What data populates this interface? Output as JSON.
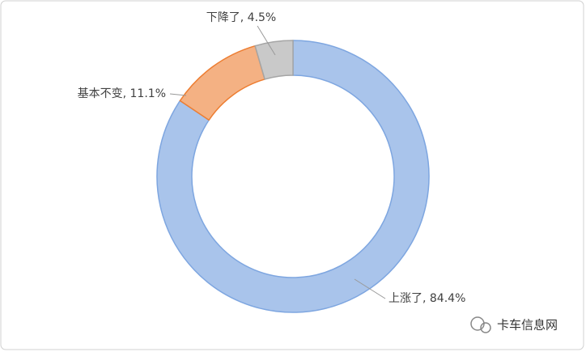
{
  "chart_data": {
    "type": "donut",
    "values": [
      84.4,
      11.1,
      4.5
    ],
    "value_labels": [
      "上涨了, 84.4%",
      "基本不变, 11.1%",
      "下降了, 4.5%"
    ],
    "colors": [
      "#a9c4eb",
      "#f4b183",
      "#c9c9c9"
    ],
    "strokes": [
      "#7ea6e0",
      "#ed7d31",
      "#a5a5a5"
    ]
  },
  "watermark": "卡车信息网"
}
